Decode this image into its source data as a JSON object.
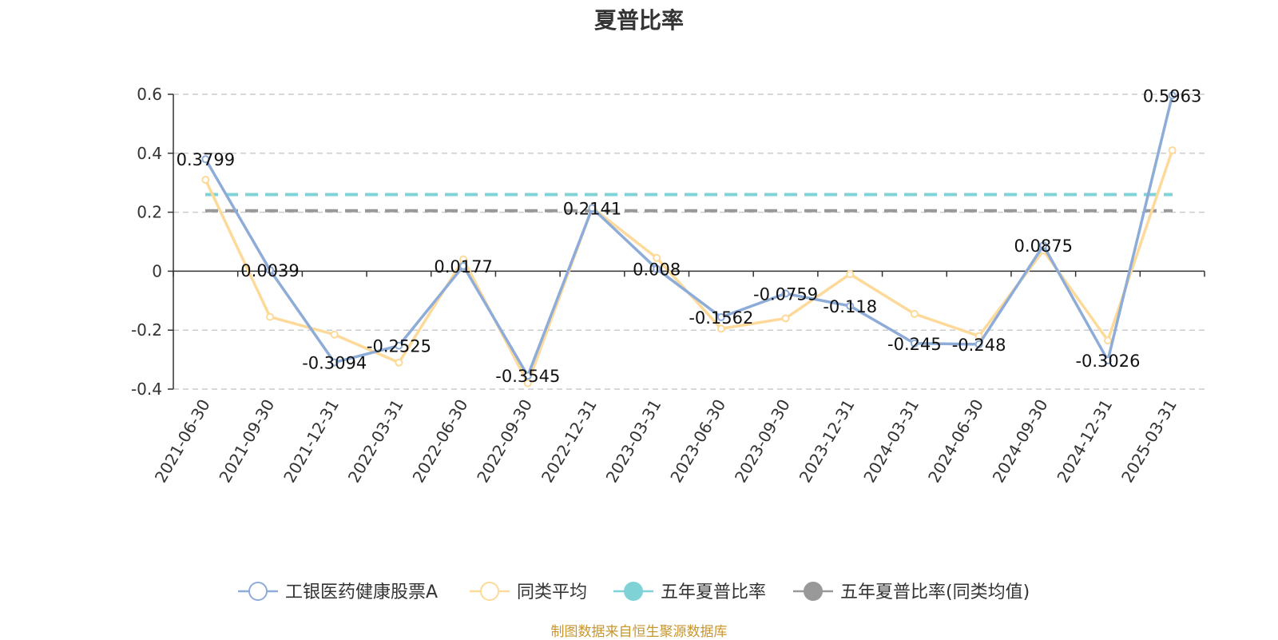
{
  "title": "夏普比率",
  "source": "制图数据来自恒生聚源数据库",
  "chart_data": {
    "type": "line",
    "title": "夏普比率",
    "categories": [
      "2021-06-30",
      "2021-09-30",
      "2021-12-31",
      "2022-03-31",
      "2022-06-30",
      "2022-09-30",
      "2022-12-31",
      "2023-03-31",
      "2023-06-30",
      "2023-09-30",
      "2023-12-31",
      "2024-03-31",
      "2024-06-30",
      "2024-09-30",
      "2024-12-31",
      "2025-03-31"
    ],
    "ylim": [
      -0.4,
      0.6
    ],
    "yticks": [
      0.6,
      0.4,
      0.2,
      0,
      -0.2,
      -0.4
    ],
    "ytick_labels": [
      "0.6",
      "0.4",
      "0.2",
      "0",
      "-0.2",
      "-0.4"
    ],
    "grid": true,
    "legend_position": "bottom",
    "series": [
      {
        "name": "工银医药健康股票A",
        "color": "#8eacd8",
        "values": [
          0.3799,
          0.0039,
          -0.3094,
          -0.2525,
          0.0177,
          -0.3545,
          0.2141,
          0.008,
          -0.1562,
          -0.0759,
          -0.118,
          -0.245,
          -0.248,
          0.0875,
          -0.3026,
          0.5963
        ],
        "labels": [
          "0.3799",
          "0.0039",
          "-0.3094",
          "-0.2525",
          "0.0177",
          "-0.3545",
          "0.2141",
          "0.008",
          "-0.1562",
          "-0.0759",
          "-0.118",
          "-0.245",
          "-0.248",
          "0.0875",
          "-0.3026",
          "0.5963"
        ]
      },
      {
        "name": "同类平均",
        "color": "#fdd99a",
        "values": [
          0.31,
          -0.155,
          -0.215,
          -0.31,
          0.04,
          -0.38,
          0.215,
          0.045,
          -0.195,
          -0.16,
          -0.01,
          -0.145,
          -0.22,
          0.07,
          -0.235,
          0.41
        ]
      }
    ],
    "reference_lines": [
      {
        "name": "五年夏普比率",
        "color": "#7fd3d6",
        "value": 0.26
      },
      {
        "name": "五年夏普比率(同类均值)",
        "color": "#999999",
        "value": 0.205
      }
    ]
  }
}
